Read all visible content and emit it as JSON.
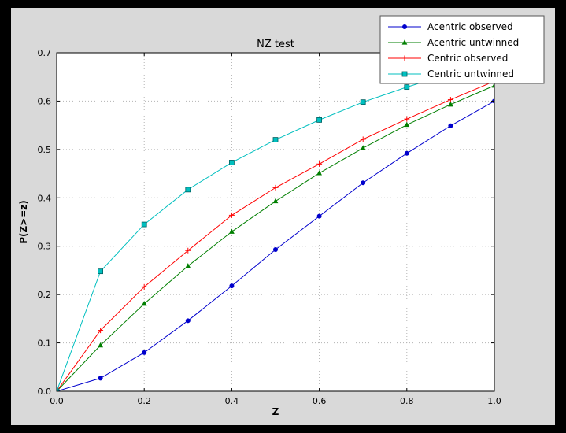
{
  "figure": {
    "background_color": "#d9d9d9",
    "frame_color": "#000000",
    "plot_background": "#ffffff",
    "grid_color": "#b3b3b3"
  },
  "chart_data": {
    "type": "line",
    "title": "NZ test",
    "xlabel": "Z",
    "ylabel": "P(Z>=z)",
    "xlim": [
      0.0,
      1.0
    ],
    "ylim": [
      0.0,
      0.7
    ],
    "xticks": [
      0.0,
      0.2,
      0.4,
      0.6,
      0.8,
      1.0
    ],
    "yticks": [
      0.0,
      0.1,
      0.2,
      0.3,
      0.4,
      0.5,
      0.6,
      0.7
    ],
    "grid": true,
    "legend_position": "top-right",
    "x": [
      0.0,
      0.1,
      0.2,
      0.3,
      0.4,
      0.5,
      0.6,
      0.7,
      0.8,
      0.9,
      1.0
    ],
    "series": [
      {
        "name": "Acentric observed",
        "color": "#0000cc",
        "marker": "circle",
        "values": [
          0.0,
          0.027,
          0.08,
          0.146,
          0.218,
          0.293,
          0.362,
          0.431,
          0.492,
          0.549,
          0.6
        ]
      },
      {
        "name": "Acentric untwinned",
        "color": "#007f00",
        "marker": "triangle-up",
        "values": [
          0.0,
          0.095,
          0.181,
          0.259,
          0.33,
          0.393,
          0.451,
          0.503,
          0.551,
          0.593,
          0.632
        ]
      },
      {
        "name": "Centric observed",
        "color": "#ff0000",
        "marker": "plus",
        "values": [
          0.0,
          0.126,
          0.216,
          0.291,
          0.364,
          0.421,
          0.47,
          0.521,
          0.563,
          0.603,
          0.641
        ]
      },
      {
        "name": "Centric untwinned",
        "color": "#00bfbf",
        "marker": "square",
        "values": [
          0.0,
          0.248,
          0.345,
          0.417,
          0.473,
          0.52,
          0.561,
          0.598,
          0.629,
          0.657,
          0.683
        ]
      }
    ]
  }
}
